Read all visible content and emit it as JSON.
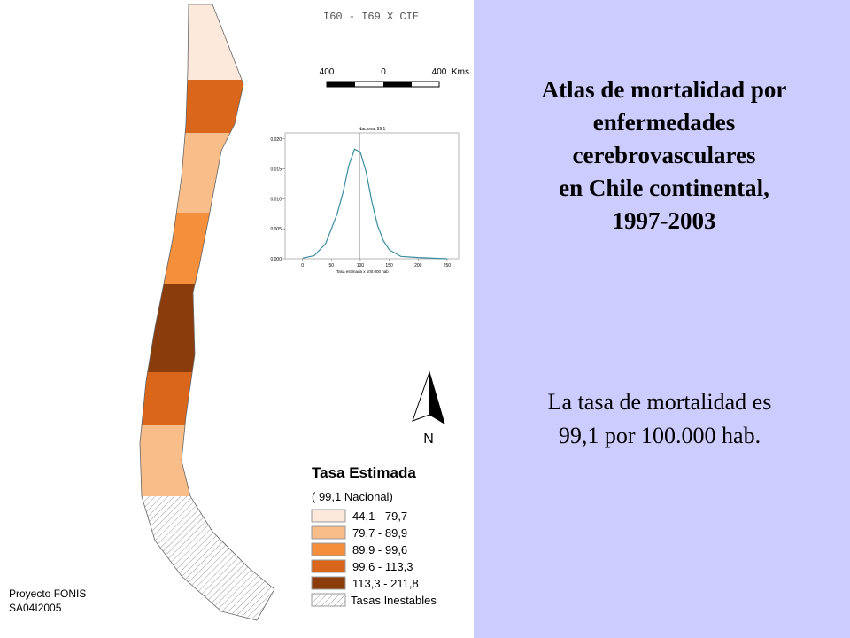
{
  "header": {
    "code": "I60 - I69 X CIE"
  },
  "scale_bar": {
    "labels": [
      "400",
      "0",
      "400"
    ],
    "unit": "Kms."
  },
  "north_arrow": {
    "label": "N"
  },
  "legend": {
    "title": "Tasa Estimada",
    "subtitle": "( 99,1 Nacional)",
    "items": [
      {
        "label": "44,1  -  79,7",
        "color": "#fde9dc"
      },
      {
        "label": "79,7  -  89,9",
        "color": "#f9bd8a"
      },
      {
        "label": "89,9  -  99,6",
        "color": "#f58f3c"
      },
      {
        "label": "99,6  -  113,3",
        "color": "#d9661a"
      },
      {
        "label": "113,3  -  211,8",
        "color": "#8a3c0a"
      }
    ],
    "unstable": "Tasas Inestables"
  },
  "footer": {
    "lines": [
      "Proyecto FONIS",
      "SA04I2005"
    ]
  },
  "slide": {
    "title_lines": [
      "Atlas de mortalidad por",
      "enfermedades",
      "cerebrovasculares",
      "en Chile continental,",
      "1997-2003"
    ],
    "text_lines": [
      "La tasa de mortalidad es",
      "99,1 por 100.000 hab."
    ]
  },
  "chart_data": {
    "type": "line",
    "title": "Nacional:99,1",
    "x_label": "Tasa estimada x 100.000 hab",
    "x": [
      0,
      20,
      40,
      60,
      70,
      80,
      90,
      100,
      110,
      120,
      130,
      140,
      150,
      170,
      200,
      250
    ],
    "series": [
      {
        "color": "#3a8ca0",
        "values": [
          0.0001,
          0.0005,
          0.0025,
          0.0075,
          0.011,
          0.0155,
          0.0183,
          0.0178,
          0.0145,
          0.0095,
          0.0055,
          0.003,
          0.0015,
          0.0004,
          0.0002,
          0
        ]
      }
    ],
    "reference_x": 99.1,
    "xlim": [
      -30,
      270
    ],
    "ylim": [
      0,
      0.021
    ],
    "xticks": [
      0,
      50,
      100,
      150,
      200,
      250
    ],
    "yticks": [
      {
        "value": 0,
        "label": "0.000"
      },
      {
        "value": 0.005,
        "label": "0.005"
      },
      {
        "value": 0.01,
        "label": "0.010"
      },
      {
        "value": 0.015,
        "label": "0.015"
      },
      {
        "value": 0.02,
        "label": "0.020"
      }
    ]
  }
}
